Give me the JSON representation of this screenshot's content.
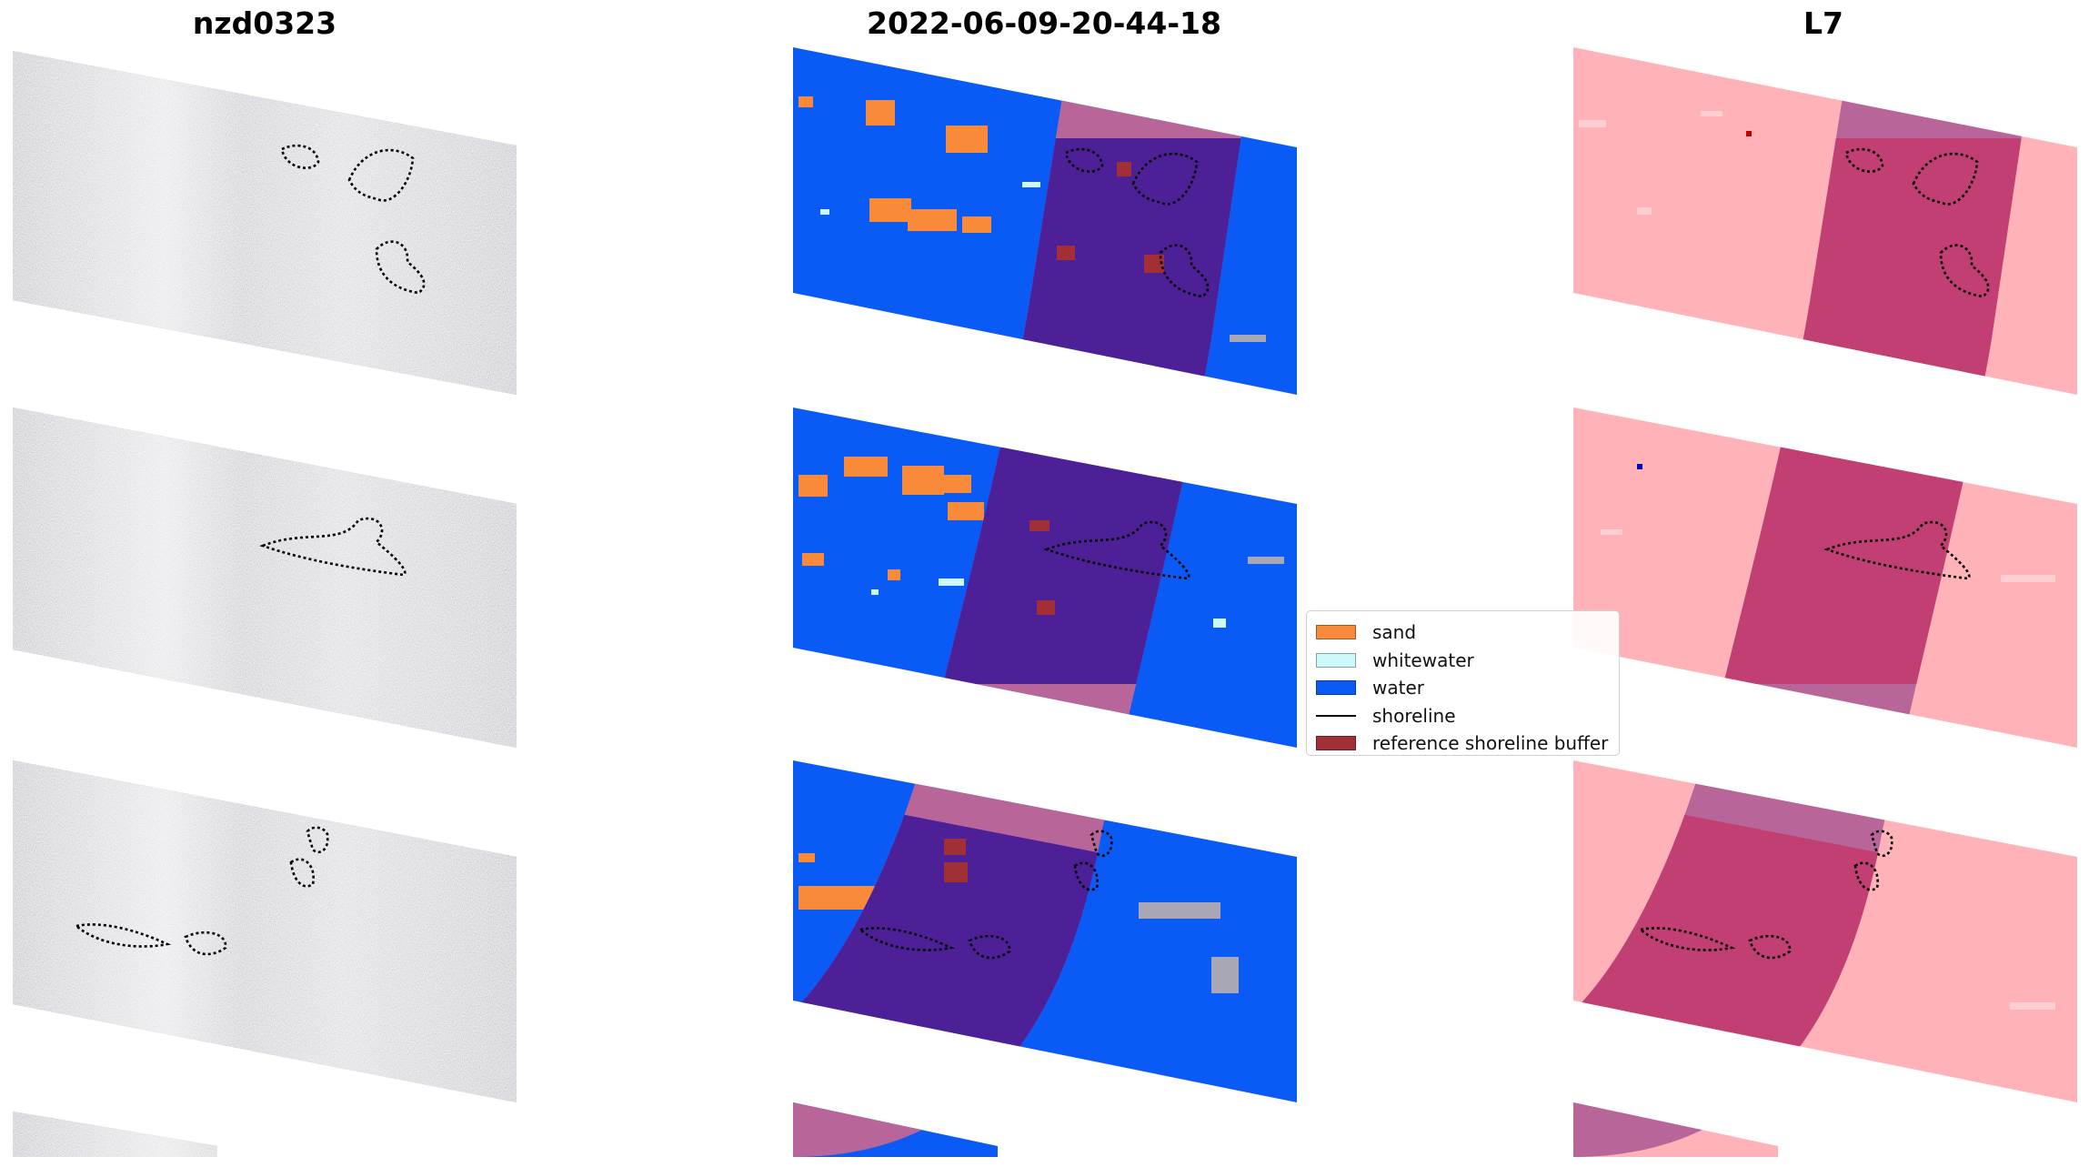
{
  "titles": {
    "left": "nzd0323",
    "center": "2022-06-09-20-44-18",
    "right": "L7"
  },
  "legend": {
    "items": [
      {
        "label": "sand",
        "color": "#f88a3a",
        "kind": "box"
      },
      {
        "label": "whitewater",
        "color": "#ccfafa",
        "kind": "box"
      },
      {
        "label": "water",
        "color": "#0a5af5",
        "kind": "box"
      },
      {
        "label": "shoreline",
        "color": "#000000",
        "kind": "line"
      },
      {
        "label": "reference shoreline buffer",
        "color": "#a22f35",
        "kind": "box"
      }
    ]
  },
  "colors": {
    "water": "#0a5af5",
    "sand": "#f88a3a",
    "whitewater": "#ccfafa",
    "buffer_light": "#b8669a",
    "buffer_dark": "#4e2098",
    "pink_base": "#ffb3b8",
    "pink_buffer_dark": "#c13f72",
    "pink_buffer_light": "#b8669a",
    "shoreline": "#000000",
    "reference_buffer": "#a22f35"
  }
}
